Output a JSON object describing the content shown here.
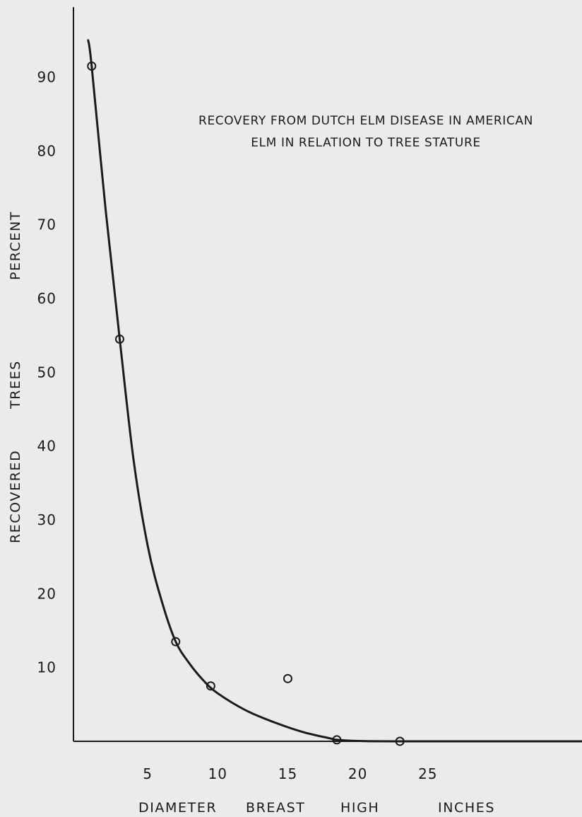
{
  "chart_data": {
    "type": "scatter",
    "title_lines": [
      "RECOVERY FROM DUTCH ELM DISEASE IN AMERICAN",
      "ELM IN RELATION TO TREE STATURE"
    ],
    "xlabel_parts": [
      "DIAMETER",
      "BREAST",
      "HIGH",
      "INCHES"
    ],
    "ylabel_parts": [
      "RECOVERED",
      "TREES",
      "PERCENT"
    ],
    "x_ticks": [
      5,
      10,
      15,
      20,
      25
    ],
    "y_ticks": [
      10,
      20,
      30,
      40,
      50,
      60,
      70,
      80,
      90
    ],
    "xlim": [
      -0.3,
      36
    ],
    "ylim": [
      0,
      99.5
    ],
    "grid": false,
    "points": [
      {
        "x": 1,
        "y": 91.5
      },
      {
        "x": 3,
        "y": 54.5
      },
      {
        "x": 7,
        "y": 13.5
      },
      {
        "x": 9.5,
        "y": 7.5
      },
      {
        "x": 15,
        "y": 8.5
      },
      {
        "x": 18.5,
        "y": 0.2
      },
      {
        "x": 23,
        "y": 0
      }
    ],
    "fitted_curve": {
      "x": [
        0.75,
        1,
        2,
        3,
        4,
        5,
        6,
        7,
        8,
        9,
        10,
        12,
        14,
        16,
        18,
        18.5,
        20,
        23,
        36
      ],
      "y": [
        95,
        91.5,
        72,
        54.5,
        38,
        26.5,
        19,
        13.5,
        10.5,
        8.2,
        6.5,
        4.2,
        2.6,
        1.3,
        0.4,
        0.2,
        0.05,
        0,
        0
      ]
    },
    "colors": {
      "ink": "#1a1a1a",
      "paper": "#ebebea"
    }
  }
}
